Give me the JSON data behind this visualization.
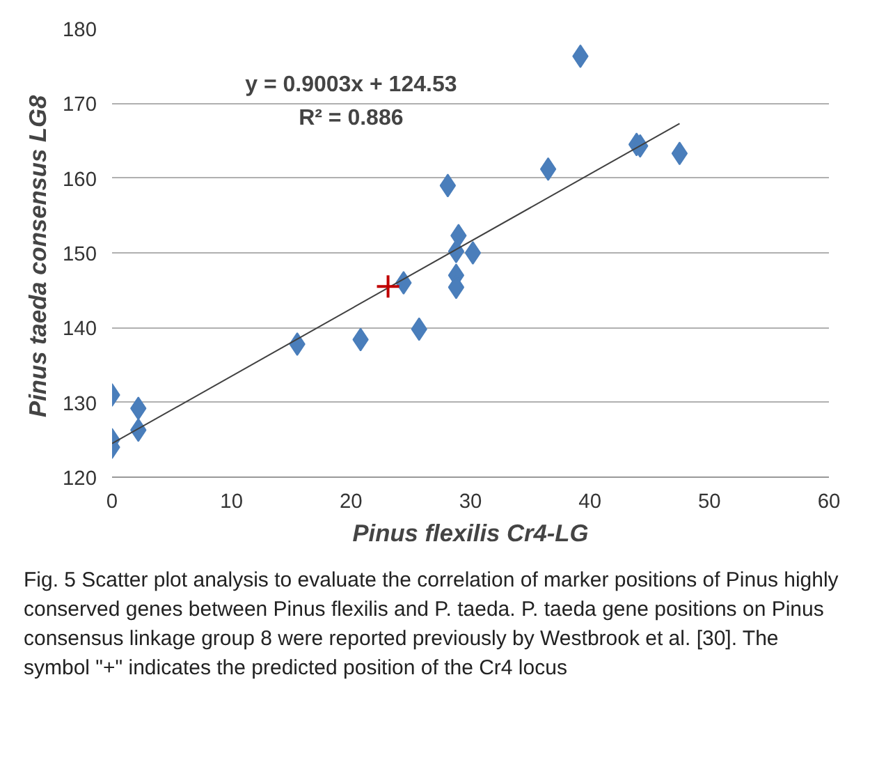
{
  "chart_data": {
    "type": "scatter",
    "xlabel": "Pinus flexilis Cr4-LG",
    "ylabel": "Pinus  taeda consensus LG8",
    "xlim": [
      0,
      60
    ],
    "ylim": [
      120,
      180
    ],
    "xticks": [
      0,
      10,
      20,
      30,
      40,
      50,
      60
    ],
    "yticks": [
      120,
      130,
      140,
      150,
      160,
      170,
      180
    ],
    "grid": "y",
    "series": [
      {
        "marker": "diamond",
        "color": "#4a7ebb",
        "x": [
          0,
          0,
          0,
          2.2,
          2.2,
          15.5,
          20.8,
          24.4,
          25.7,
          28.1,
          29.0,
          28.8,
          30.2,
          28.8,
          28.8,
          36.5,
          39.2,
          43.9,
          44.2,
          47.5
        ],
        "values": [
          131.0,
          125.0,
          124.0,
          129.2,
          126.3,
          137.8,
          138.4,
          146.0,
          139.8,
          159.0,
          152.3,
          150.2,
          150.0,
          147.0,
          145.4,
          161.2,
          176.3,
          164.5,
          164.3,
          163.3
        ]
      },
      {
        "type": "line",
        "line_style": "solid",
        "color": "#404040",
        "x": [
          0,
          47.5
        ],
        "values": [
          124.5,
          167.3
        ]
      },
      {
        "marker": "cross",
        "color": "#c00000",
        "x": [
          23.1
        ],
        "values": [
          145.5
        ]
      }
    ],
    "annotations": [
      "y = 0.9003x + 124.53",
      "R² = 0.886",
      "Fig. 5 Scatter plot analysis to evaluate the correlation of marker positions of Pinus highly conserved genes between Pinus flexilis and P. taeda. P. taeda gene positions on Pinus consensus linkage group 8 were reported previously by Westbrook et al. [30]. The symbol \"+\" indicates the predicted position of the Cr4 locus"
    ]
  }
}
